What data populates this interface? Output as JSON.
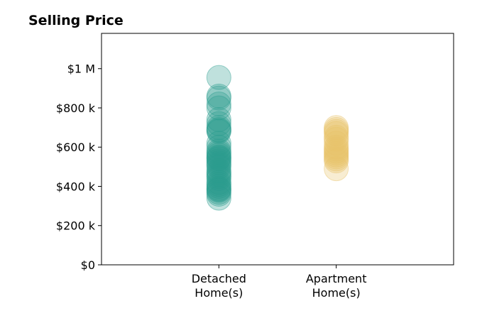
{
  "chart_data": {
    "type": "scatter",
    "title": "Selling Price",
    "xlabel": "",
    "ylabel": "",
    "categories": [
      {
        "lines": [
          "Detached",
          "Home(s)"
        ]
      },
      {
        "lines": [
          "Apartment",
          "Home(s)"
        ]
      }
    ],
    "ylim": [
      0,
      1180000
    ],
    "yticks": [
      {
        "value": 0,
        "label": "$0"
      },
      {
        "value": 200000,
        "label": "$200 k"
      },
      {
        "value": 400000,
        "label": "$400 k"
      },
      {
        "value": 600000,
        "label": "$600 k"
      },
      {
        "value": 800000,
        "label": "$800 k"
      },
      {
        "value": 1000000,
        "label": "$1 M"
      }
    ],
    "series": [
      {
        "category_index": 0,
        "color": "#2a9d8f",
        "values": [
          955000,
          860000,
          850000,
          820000,
          800000,
          740000,
          720000,
          700000,
          690000,
          685000,
          680000,
          620000,
          600000,
          580000,
          570000,
          560000,
          550000,
          545000,
          540000,
          530000,
          520000,
          510000,
          500000,
          480000,
          470000,
          460000,
          450000,
          440000,
          420000,
          410000,
          400000,
          390000,
          385000,
          380000,
          370000,
          360000,
          340000
        ]
      },
      {
        "category_index": 1,
        "color": "#e9c46a",
        "values": [
          700000,
          690000,
          680000,
          670000,
          650000,
          640000,
          620000,
          600000,
          590000,
          580000,
          570000,
          560000,
          550000,
          540000,
          530000,
          490000
        ]
      }
    ],
    "grid": false,
    "legend": "none"
  }
}
